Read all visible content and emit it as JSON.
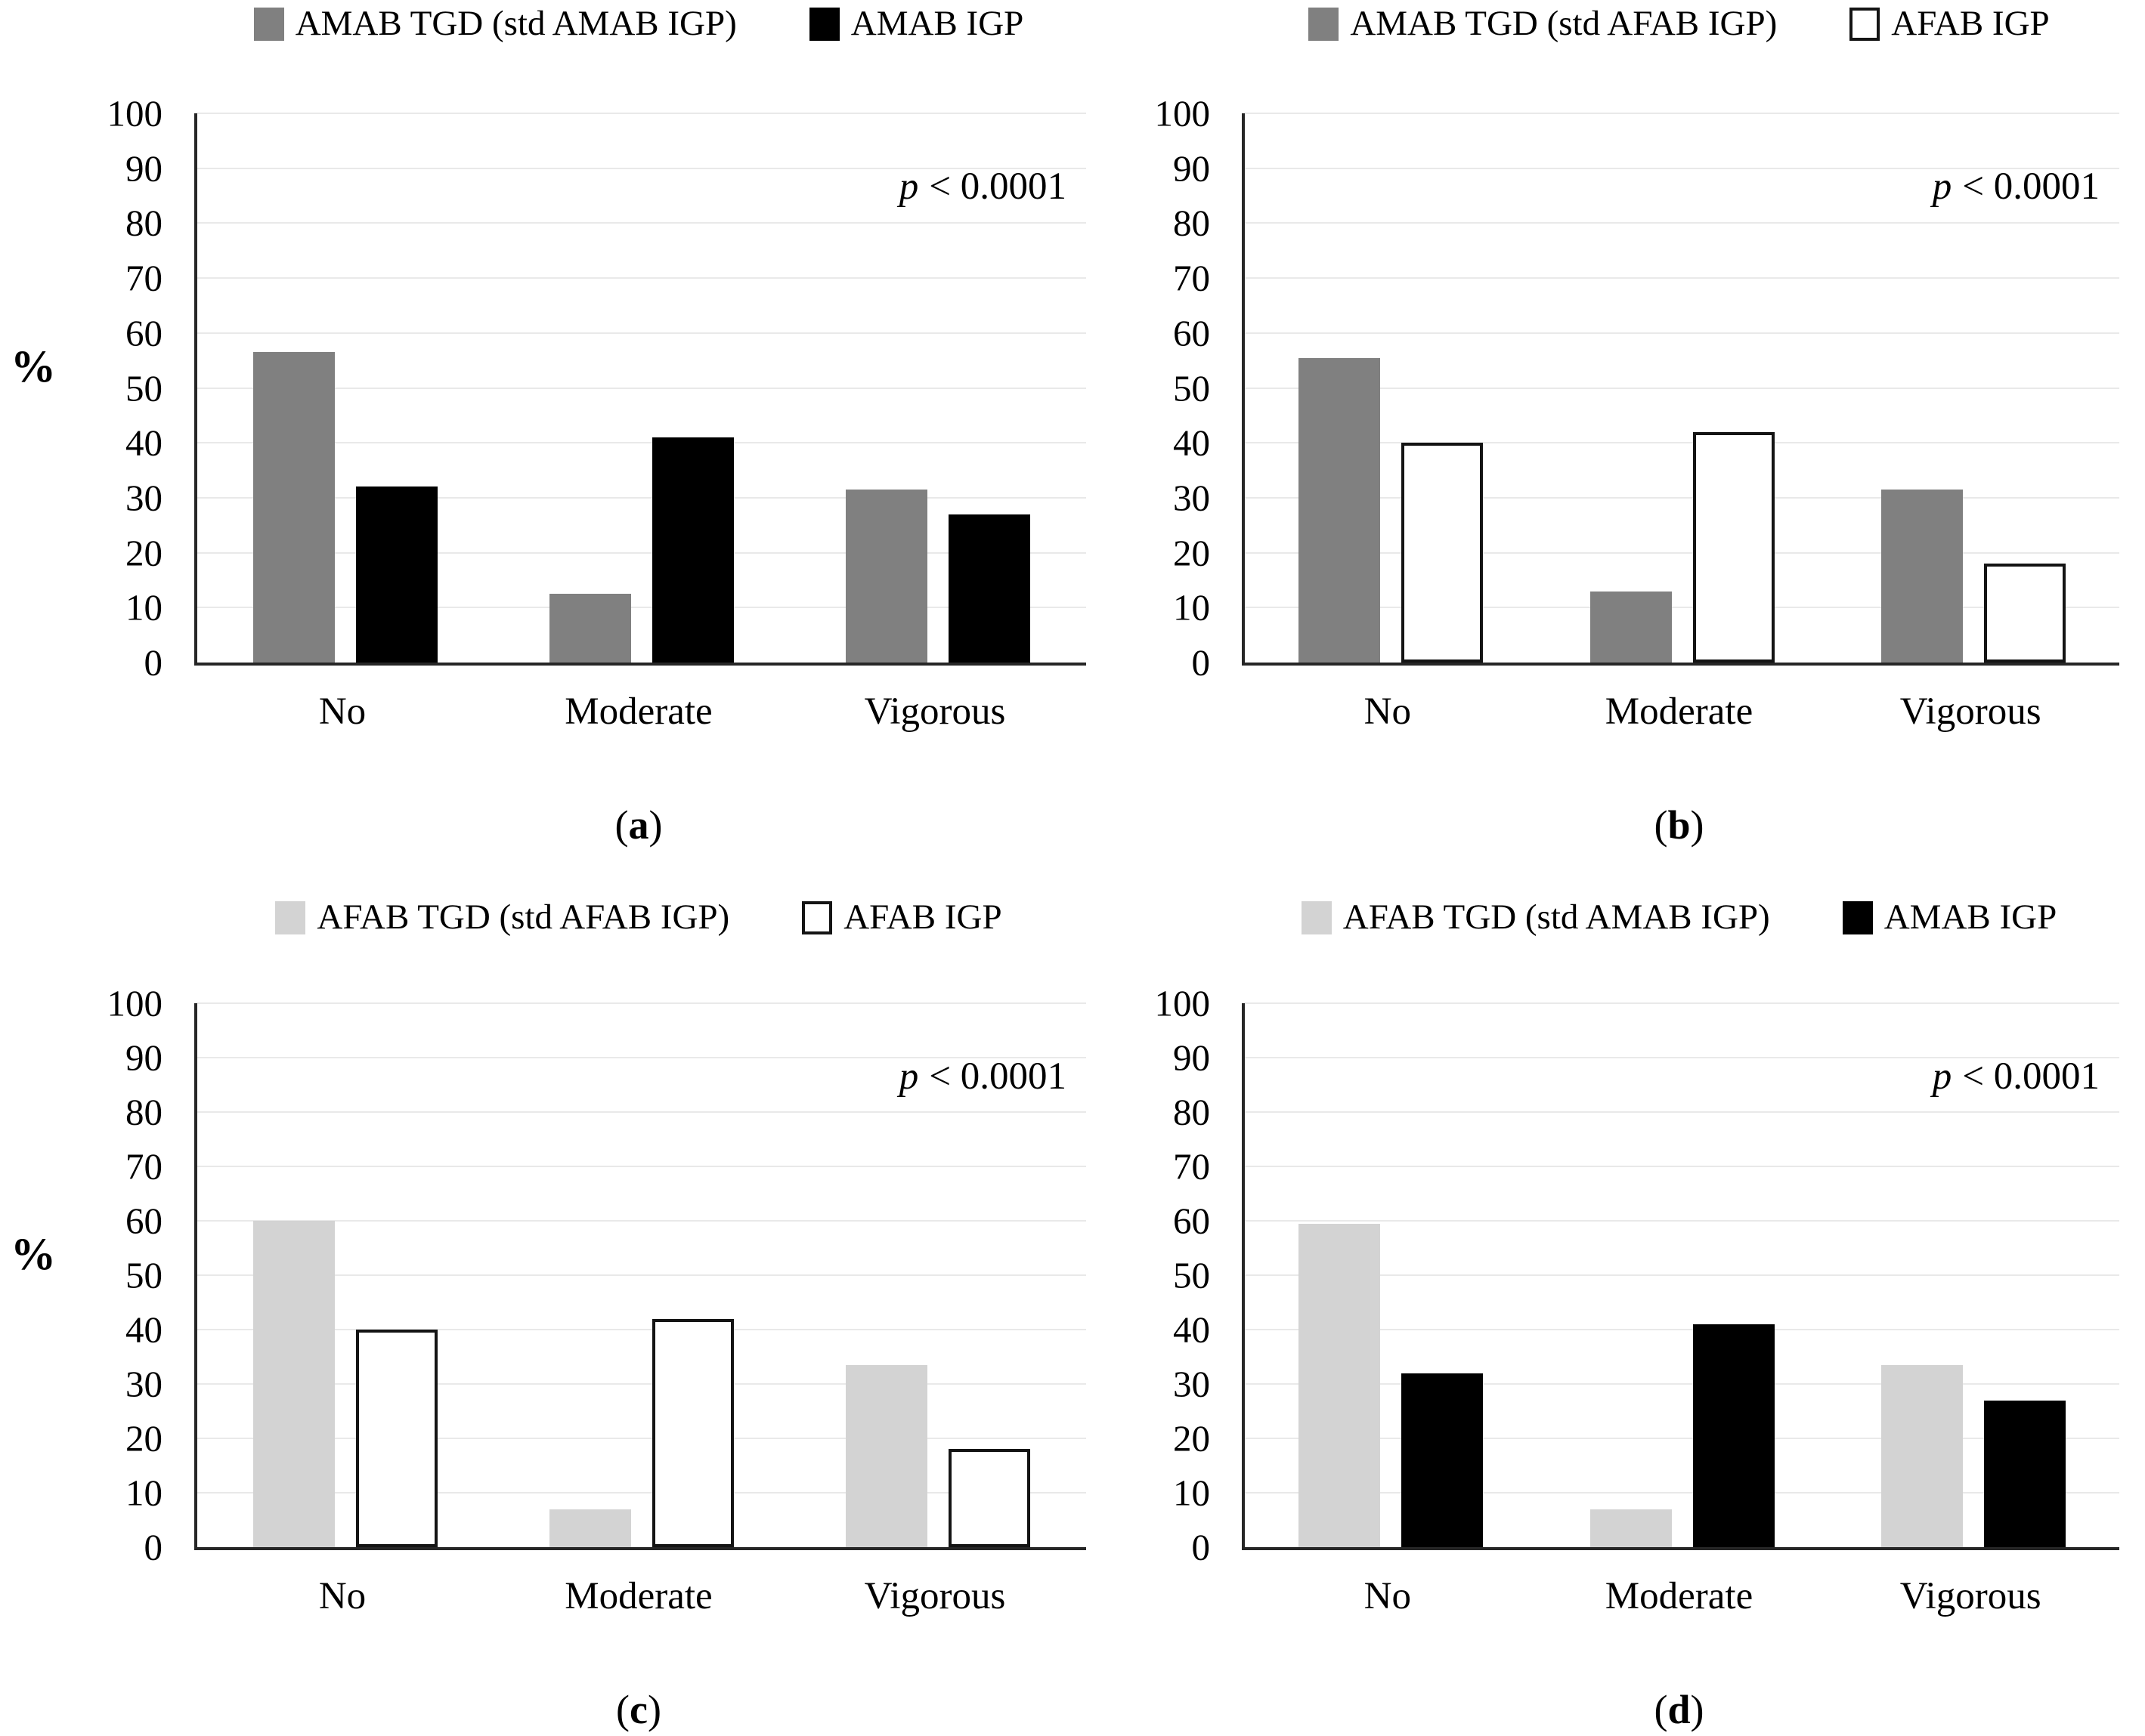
{
  "figure": {
    "y_axis_label": "%",
    "y_ticks": [
      0,
      10,
      20,
      30,
      40,
      50,
      60,
      70,
      80,
      90,
      100
    ],
    "categories": [
      "No",
      "Moderate",
      "Vigorous"
    ],
    "annotation": {
      "italic_part": "p",
      "rest_part": "< 0.0001",
      "full": "p < 0.0001"
    },
    "caption_parens": {
      "open": "(",
      "close": ")"
    },
    "colors": {
      "dark_gray": "#808080",
      "light_gray": "#d3d3d3",
      "black": "#000000",
      "white": "#ffffff",
      "axis": "#262626",
      "grid": "#e9e9e9"
    }
  },
  "chart_data": [
    {
      "type": "bar",
      "panel_letter": "a",
      "title": "",
      "categories": [
        "No",
        "Moderate",
        "Vigorous"
      ],
      "ylabel": "%",
      "ylim": [
        0,
        100
      ],
      "yticks": [
        0,
        10,
        20,
        30,
        40,
        50,
        60,
        70,
        80,
        90,
        100
      ],
      "grid": true,
      "legend_position": "top",
      "annotation": "p < 0.0001",
      "show_percent_axis_label": true,
      "series": [
        {
          "name": "AMAB TGD (std AMAB IGP)",
          "fill": "dark_gray",
          "values": [
            56.5,
            12.5,
            31.5
          ]
        },
        {
          "name": "AMAB IGP",
          "fill": "black",
          "values": [
            32,
            41,
            27
          ]
        }
      ]
    },
    {
      "type": "bar",
      "panel_letter": "b",
      "title": "",
      "categories": [
        "No",
        "Moderate",
        "Vigorous"
      ],
      "ylabel": "%",
      "ylim": [
        0,
        100
      ],
      "yticks": [
        0,
        10,
        20,
        30,
        40,
        50,
        60,
        70,
        80,
        90,
        100
      ],
      "grid": true,
      "legend_position": "top",
      "annotation": "p < 0.0001",
      "show_percent_axis_label": false,
      "series": [
        {
          "name": "AMAB TGD (std AFAB IGP)",
          "fill": "dark_gray",
          "values": [
            55.5,
            13,
            31.5
          ]
        },
        {
          "name": "AFAB IGP",
          "fill": "white",
          "values": [
            40,
            42,
            18
          ]
        }
      ]
    },
    {
      "type": "bar",
      "panel_letter": "c",
      "title": "",
      "categories": [
        "No",
        "Moderate",
        "Vigorous"
      ],
      "ylabel": "%",
      "ylim": [
        0,
        100
      ],
      "yticks": [
        0,
        10,
        20,
        30,
        40,
        50,
        60,
        70,
        80,
        90,
        100
      ],
      "grid": true,
      "legend_position": "top",
      "annotation": "p < 0.0001",
      "show_percent_axis_label": true,
      "series": [
        {
          "name": "AFAB TGD (std AFAB IGP)",
          "fill": "light_gray",
          "values": [
            60,
            7,
            33.5
          ]
        },
        {
          "name": "AFAB IGP",
          "fill": "white",
          "values": [
            40,
            42,
            18
          ]
        }
      ]
    },
    {
      "type": "bar",
      "panel_letter": "d",
      "title": "",
      "categories": [
        "No",
        "Moderate",
        "Vigorous"
      ],
      "ylabel": "%",
      "ylim": [
        0,
        100
      ],
      "yticks": [
        0,
        10,
        20,
        30,
        40,
        50,
        60,
        70,
        80,
        90,
        100
      ],
      "grid": true,
      "legend_position": "top",
      "annotation": "p < 0.0001",
      "show_percent_axis_label": false,
      "series": [
        {
          "name": "AFAB TGD (std AMAB IGP)",
          "fill": "light_gray",
          "values": [
            59.5,
            7,
            33.5
          ]
        },
        {
          "name": "AMAB IGP",
          "fill": "black",
          "values": [
            32,
            41,
            27
          ]
        }
      ]
    }
  ]
}
